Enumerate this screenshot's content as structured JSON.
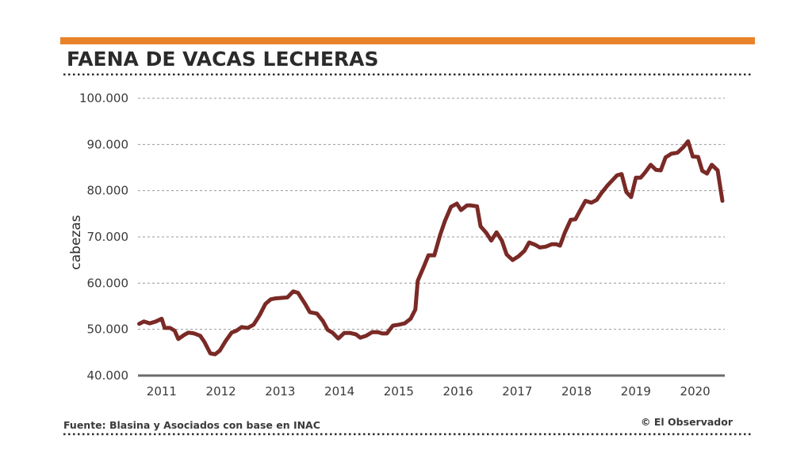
{
  "header": {
    "title": "FAENA DE VACAS LECHERAS"
  },
  "footer": {
    "source": "Fuente: Blasina y Asociados con base en INAC",
    "credit": "© El Observador"
  },
  "colors": {
    "accent_bar": "#e8832a",
    "line": "#7a2a26",
    "grid": "#9a9a9a",
    "axis": "#6b6b6b",
    "dots": "#2b2b2b"
  },
  "chart_data": {
    "type": "line",
    "title": "FAENA DE VACAS LECHERAS",
    "xlabel": "",
    "ylabel": "cabezas",
    "ylim": [
      40000,
      100000
    ],
    "xlim": [
      2010.6,
      2020.5
    ],
    "yticks": [
      {
        "value": 40000,
        "label": "40.000"
      },
      {
        "value": 50000,
        "label": "50.000"
      },
      {
        "value": 60000,
        "label": "60.000"
      },
      {
        "value": 70000,
        "label": "70.000"
      },
      {
        "value": 80000,
        "label": "80.000"
      },
      {
        "value": 90000,
        "label": "90.000"
      },
      {
        "value": 100000,
        "label": "100.000"
      }
    ],
    "xticks": [
      {
        "value": 2011,
        "label": "2011"
      },
      {
        "value": 2012,
        "label": "2012"
      },
      {
        "value": 2013,
        "label": "2013"
      },
      {
        "value": 2014,
        "label": "2014"
      },
      {
        "value": 2015,
        "label": "2015"
      },
      {
        "value": 2016,
        "label": "2016"
      },
      {
        "value": 2017,
        "label": "2017"
      },
      {
        "value": 2018,
        "label": "2018"
      },
      {
        "value": 2019,
        "label": "2019"
      },
      {
        "value": 2020,
        "label": "2020"
      }
    ],
    "grid": true,
    "series": [
      {
        "points": [
          [
            2010.62,
            51200
          ],
          [
            2010.7,
            51700
          ],
          [
            2010.8,
            51300
          ],
          [
            2010.9,
            51700
          ],
          [
            2011.0,
            52300
          ],
          [
            2011.05,
            50300
          ],
          [
            2011.14,
            50300
          ],
          [
            2011.22,
            49700
          ],
          [
            2011.28,
            47900
          ],
          [
            2011.38,
            48800
          ],
          [
            2011.45,
            49300
          ],
          [
            2011.55,
            49100
          ],
          [
            2011.65,
            48600
          ],
          [
            2011.72,
            47300
          ],
          [
            2011.82,
            44800
          ],
          [
            2011.9,
            44600
          ],
          [
            2011.98,
            45400
          ],
          [
            2012.08,
            47500
          ],
          [
            2012.18,
            49300
          ],
          [
            2012.26,
            49700
          ],
          [
            2012.35,
            50500
          ],
          [
            2012.45,
            50300
          ],
          [
            2012.55,
            51000
          ],
          [
            2012.65,
            53000
          ],
          [
            2012.75,
            55500
          ],
          [
            2012.84,
            56500
          ],
          [
            2012.92,
            56700
          ],
          [
            2013.02,
            56800
          ],
          [
            2013.12,
            56900
          ],
          [
            2013.22,
            58200
          ],
          [
            2013.3,
            57900
          ],
          [
            2013.42,
            55500
          ],
          [
            2013.5,
            53700
          ],
          [
            2013.62,
            53400
          ],
          [
            2013.72,
            51800
          ],
          [
            2013.8,
            49900
          ],
          [
            2013.88,
            49300
          ],
          [
            2013.98,
            48000
          ],
          [
            2014.08,
            49200
          ],
          [
            2014.18,
            49200
          ],
          [
            2014.28,
            48900
          ],
          [
            2014.35,
            48200
          ],
          [
            2014.45,
            48600
          ],
          [
            2014.55,
            49400
          ],
          [
            2014.65,
            49400
          ],
          [
            2014.72,
            49100
          ],
          [
            2014.8,
            49100
          ],
          [
            2014.9,
            50800
          ],
          [
            2015.0,
            51000
          ],
          [
            2015.1,
            51300
          ],
          [
            2015.2,
            52300
          ],
          [
            2015.28,
            54300
          ],
          [
            2015.32,
            60500
          ],
          [
            2015.42,
            63500
          ],
          [
            2015.5,
            66000
          ],
          [
            2015.6,
            66000
          ],
          [
            2015.7,
            70500
          ],
          [
            2015.78,
            73500
          ],
          [
            2015.88,
            76500
          ],
          [
            2015.98,
            77200
          ],
          [
            2016.05,
            75800
          ],
          [
            2016.15,
            76800
          ],
          [
            2016.22,
            76800
          ],
          [
            2016.32,
            76600
          ],
          [
            2016.38,
            72300
          ],
          [
            2016.48,
            70800
          ],
          [
            2016.56,
            69200
          ],
          [
            2016.65,
            71000
          ],
          [
            2016.74,
            69200
          ],
          [
            2016.82,
            66200
          ],
          [
            2016.92,
            65000
          ],
          [
            2017.02,
            65800
          ],
          [
            2017.12,
            67000
          ],
          [
            2017.2,
            68800
          ],
          [
            2017.3,
            68300
          ],
          [
            2017.38,
            67700
          ],
          [
            2017.48,
            67900
          ],
          [
            2017.58,
            68400
          ],
          [
            2017.66,
            68400
          ],
          [
            2017.72,
            68100
          ],
          [
            2017.8,
            70900
          ],
          [
            2017.9,
            73700
          ],
          [
            2017.98,
            73800
          ],
          [
            2018.05,
            75500
          ],
          [
            2018.15,
            77800
          ],
          [
            2018.25,
            77400
          ],
          [
            2018.34,
            78000
          ],
          [
            2018.42,
            79500
          ],
          [
            2018.52,
            81100
          ],
          [
            2018.6,
            82200
          ],
          [
            2018.68,
            83300
          ],
          [
            2018.76,
            83600
          ],
          [
            2018.84,
            79700
          ],
          [
            2018.92,
            78600
          ],
          [
            2019.0,
            82800
          ],
          [
            2019.08,
            82800
          ],
          [
            2019.16,
            84000
          ],
          [
            2019.25,
            85600
          ],
          [
            2019.34,
            84500
          ],
          [
            2019.42,
            84400
          ],
          [
            2019.5,
            87200
          ],
          [
            2019.6,
            88000
          ],
          [
            2019.7,
            88200
          ],
          [
            2019.8,
            89400
          ],
          [
            2019.88,
            90700
          ],
          [
            2019.96,
            87400
          ],
          [
            2020.05,
            87300
          ],
          [
            2020.12,
            84300
          ],
          [
            2020.2,
            83700
          ],
          [
            2020.28,
            85600
          ],
          [
            2020.38,
            84400
          ],
          [
            2020.46,
            77800
          ]
        ]
      }
    ]
  }
}
